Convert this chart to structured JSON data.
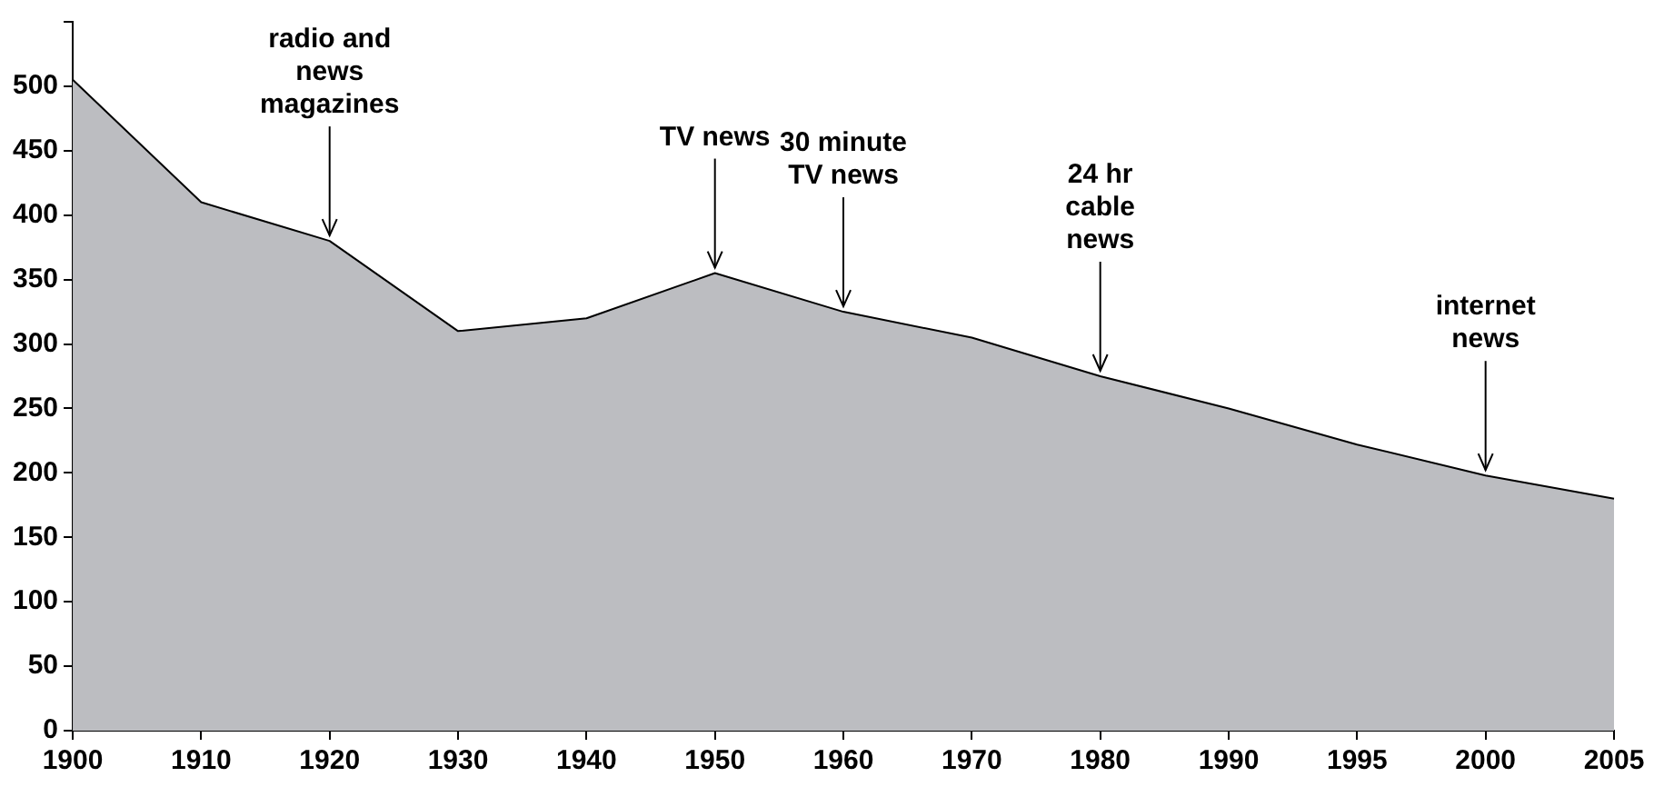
{
  "chart_data": {
    "type": "area",
    "categories": [
      "1900",
      "1910",
      "1920",
      "1930",
      "1940",
      "1950",
      "1960",
      "1970",
      "1980",
      "1990",
      "1995",
      "2000",
      "2005"
    ],
    "series": [
      {
        "color": "#bcbdc1",
        "values": [
          505,
          410,
          380,
          310,
          320,
          355,
          325,
          305,
          275,
          250,
          222,
          198,
          180
        ]
      }
    ],
    "ylim": [
      0,
      550
    ],
    "yticks": [
      0,
      50,
      100,
      150,
      200,
      250,
      300,
      350,
      400,
      450,
      500,
      {
        "value": 550,
        "label": null
      }
    ],
    "grid": false,
    "legend": false,
    "annotations": [
      {
        "text": "radio and\nnews\nmagazines",
        "x": "1920",
        "y": 380
      },
      {
        "text": "TV news",
        "x": "1950",
        "y": 355
      },
      {
        "text": "30 minute\nTV news",
        "x": "1960",
        "y": 325
      },
      {
        "text": "24 hr\ncable\nnews",
        "x": "1980",
        "y": 275
      },
      {
        "text": "internet\nnews",
        "x": "2000",
        "y": 198
      }
    ]
  }
}
